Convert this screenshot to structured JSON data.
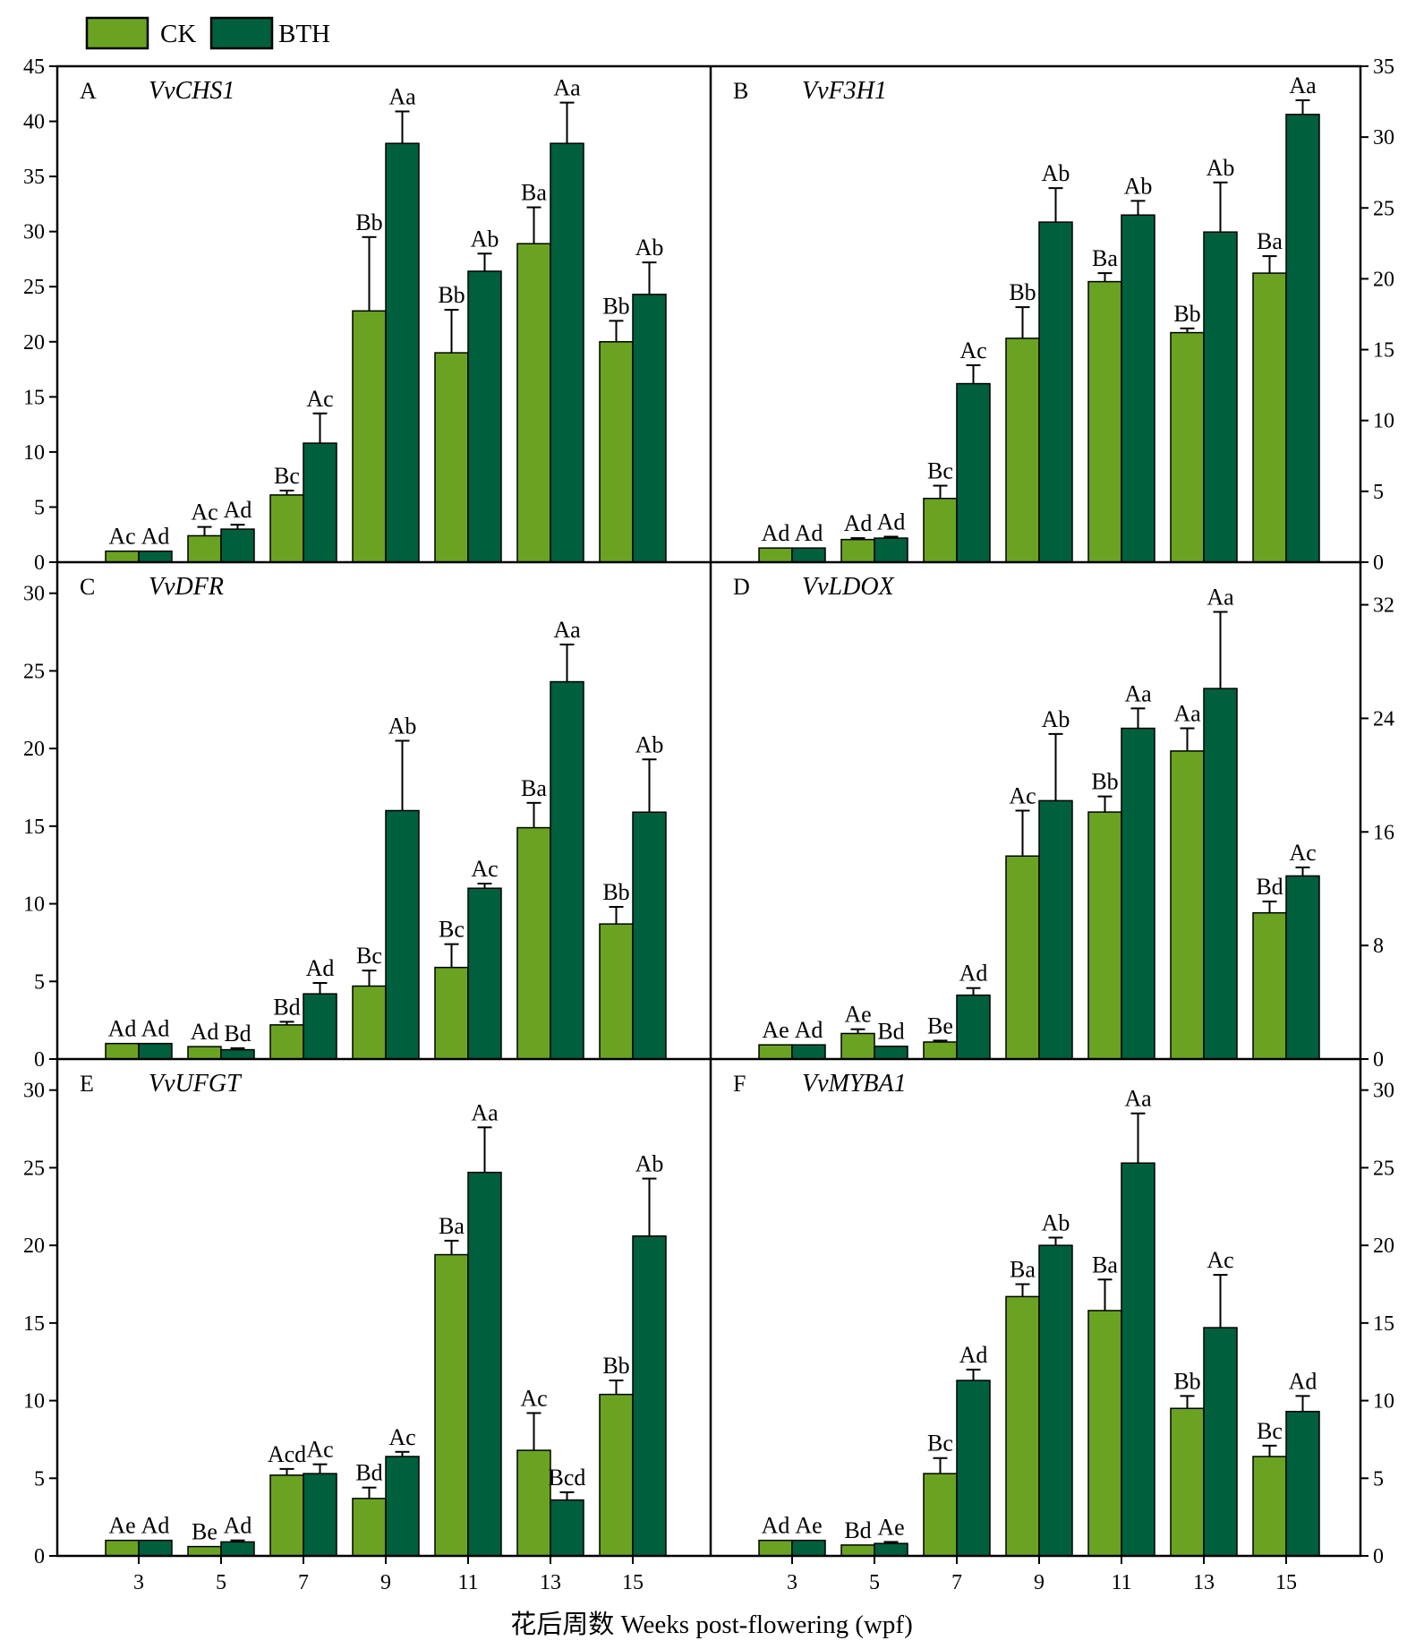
{
  "legend": {
    "items": [
      {
        "label": "CK",
        "color": "#6aa322"
      },
      {
        "label": "BTH",
        "color": "#005f3d"
      }
    ]
  },
  "xaxis": {
    "title": "花后周数 Weeks post-flowering (wpf)"
  },
  "chart_data": [
    {
      "type": "bar",
      "panel": "A",
      "gene": "VvCHS1",
      "categories": [
        "3",
        "5",
        "7",
        "9",
        "11",
        "13",
        "15"
      ],
      "ylim": [
        0,
        45
      ],
      "yticks": [
        0,
        5,
        10,
        15,
        20,
        25,
        30,
        35,
        40,
        45
      ],
      "y_axis_side": "left",
      "series": [
        {
          "name": "CK",
          "color": "#6aa322",
          "values": [
            1.0,
            2.4,
            6.1,
            22.8,
            19.0,
            28.9,
            20.0
          ],
          "errors": [
            0,
            0.8,
            0.4,
            6.7,
            3.9,
            3.3,
            1.9
          ],
          "labels": [
            "Ac",
            "Ac",
            "Bc",
            "Bb",
            "Bb",
            "Ba",
            "Bb"
          ]
        },
        {
          "name": "BTH",
          "color": "#005f3d",
          "values": [
            1.0,
            3.0,
            10.8,
            38.0,
            26.4,
            38.0,
            24.3
          ],
          "errors": [
            0,
            0.4,
            2.7,
            2.9,
            1.6,
            3.7,
            2.9
          ],
          "labels": [
            "Ad",
            "Ad",
            "Ac",
            "Aa",
            "Ab",
            "Aa",
            "Ab"
          ]
        }
      ]
    },
    {
      "type": "bar",
      "panel": "B",
      "gene": "VvF3H1",
      "categories": [
        "3",
        "5",
        "7",
        "9",
        "11",
        "13",
        "15"
      ],
      "ylim": [
        0,
        35
      ],
      "yticks": [
        0,
        5,
        10,
        15,
        20,
        25,
        30,
        35
      ],
      "y_axis_side": "right",
      "series": [
        {
          "name": "CK",
          "color": "#6aa322",
          "values": [
            1.0,
            1.6,
            4.5,
            15.8,
            19.8,
            16.2,
            20.4
          ],
          "errors": [
            0,
            0.1,
            0.9,
            2.2,
            0.6,
            0.3,
            1.2
          ],
          "labels": [
            "Ad",
            "Ad",
            "Bc",
            "Bb",
            "Ba",
            "Bb",
            "Ba"
          ]
        },
        {
          "name": "BTH",
          "color": "#005f3d",
          "values": [
            1.0,
            1.7,
            12.6,
            24.0,
            24.5,
            23.3,
            31.6
          ],
          "errors": [
            0,
            0.1,
            1.3,
            2.4,
            1.0,
            3.5,
            1.0
          ],
          "labels": [
            "Ad",
            "Ad",
            "Ac",
            "Ab",
            "Ab",
            "Ab",
            "Aa"
          ]
        }
      ]
    },
    {
      "type": "bar",
      "panel": "C",
      "gene": "VvDFR",
      "categories": [
        "3",
        "5",
        "7",
        "9",
        "11",
        "13",
        "15"
      ],
      "ylim": [
        0,
        32
      ],
      "yticks": [
        0,
        5,
        10,
        15,
        20,
        25,
        30
      ],
      "y_axis_side": "left",
      "series": [
        {
          "name": "CK",
          "color": "#6aa322",
          "values": [
            1.0,
            0.8,
            2.2,
            4.7,
            5.9,
            14.9,
            8.7
          ],
          "errors": [
            0,
            0,
            0.2,
            1.0,
            1.5,
            1.6,
            1.1
          ],
          "labels": [
            "Ad",
            "Ad",
            "Bd",
            "Bc",
            "Bc",
            "Ba",
            "Bb"
          ]
        },
        {
          "name": "BTH",
          "color": "#005f3d",
          "values": [
            1.0,
            0.6,
            4.2,
            16.0,
            11.0,
            24.3,
            15.9
          ],
          "errors": [
            0,
            0.1,
            0.7,
            4.5,
            0.3,
            2.4,
            3.4
          ],
          "labels": [
            "Ad",
            "Bd",
            "Ad",
            "Ab",
            "Ac",
            "Aa",
            "Ab"
          ]
        }
      ]
    },
    {
      "type": "bar",
      "panel": "D",
      "gene": "VvLDOX",
      "categories": [
        "3",
        "5",
        "7",
        "9",
        "11",
        "13",
        "15"
      ],
      "ylim": [
        0,
        35
      ],
      "yticks": [
        0,
        8,
        16,
        24,
        32
      ],
      "y_axis_side": "right",
      "series": [
        {
          "name": "CK",
          "color": "#6aa322",
          "values": [
            1.0,
            1.8,
            1.2,
            14.3,
            17.4,
            21.7,
            10.3
          ],
          "errors": [
            0,
            0.3,
            0.1,
            3.2,
            1.1,
            1.6,
            0.8
          ],
          "labels": [
            "Ae",
            "Ae",
            "Be",
            "Ac",
            "Bb",
            "Aa",
            "Bd"
          ]
        },
        {
          "name": "BTH",
          "color": "#005f3d",
          "values": [
            1.0,
            0.9,
            4.5,
            18.2,
            23.3,
            26.1,
            12.9
          ],
          "errors": [
            0,
            0,
            0.5,
            4.7,
            1.4,
            5.4,
            0.6
          ],
          "labels": [
            "Ad",
            "Bd",
            "Ad",
            "Ab",
            "Aa",
            "Aa",
            "Ac"
          ]
        }
      ]
    },
    {
      "type": "bar",
      "panel": "E",
      "gene": "VvUFGT",
      "categories": [
        "3",
        "5",
        "7",
        "9",
        "11",
        "13",
        "15"
      ],
      "ylim": [
        0,
        32
      ],
      "yticks": [
        0,
        5,
        10,
        15,
        20,
        25,
        30
      ],
      "y_axis_side": "left",
      "series": [
        {
          "name": "CK",
          "color": "#6aa322",
          "values": [
            1.0,
            0.6,
            5.2,
            3.7,
            19.4,
            6.8,
            10.4
          ],
          "errors": [
            0,
            0,
            0.4,
            0.7,
            0.9,
            2.4,
            0.9
          ],
          "labels": [
            "Ae",
            "Be",
            "Acd",
            "Bd",
            "Ba",
            "Ac",
            "Bb"
          ]
        },
        {
          "name": "BTH",
          "color": "#005f3d",
          "values": [
            1.0,
            0.9,
            5.3,
            6.4,
            24.7,
            3.6,
            20.6
          ],
          "errors": [
            0,
            0.1,
            0.6,
            0.3,
            2.9,
            0.5,
            3.7
          ],
          "labels": [
            "Ad",
            "Ad",
            "Ac",
            "Ac",
            "Aa",
            "Bcd",
            "Ab"
          ]
        }
      ]
    },
    {
      "type": "bar",
      "panel": "F",
      "gene": "VvMYBA1",
      "categories": [
        "3",
        "5",
        "7",
        "9",
        "11",
        "13",
        "15"
      ],
      "ylim": [
        0,
        32
      ],
      "yticks": [
        0,
        5,
        10,
        15,
        20,
        25,
        30
      ],
      "y_axis_side": "right",
      "series": [
        {
          "name": "CK",
          "color": "#6aa322",
          "values": [
            1.0,
            0.7,
            5.3,
            16.7,
            15.8,
            9.5,
            6.4
          ],
          "errors": [
            0,
            0,
            1.0,
            0.8,
            2.0,
            0.8,
            0.7
          ],
          "labels": [
            "Ad",
            "Bd",
            "Bc",
            "Ba",
            "Ba",
            "Bb",
            "Bc"
          ]
        },
        {
          "name": "BTH",
          "color": "#005f3d",
          "values": [
            1.0,
            0.8,
            11.3,
            20.0,
            25.3,
            14.7,
            9.3
          ],
          "errors": [
            0,
            0.1,
            0.7,
            0.5,
            3.2,
            3.4,
            1.0
          ],
          "labels": [
            "Ae",
            "Ae",
            "Ad",
            "Ab",
            "Aa",
            "Ac",
            "Ad"
          ]
        }
      ]
    }
  ]
}
